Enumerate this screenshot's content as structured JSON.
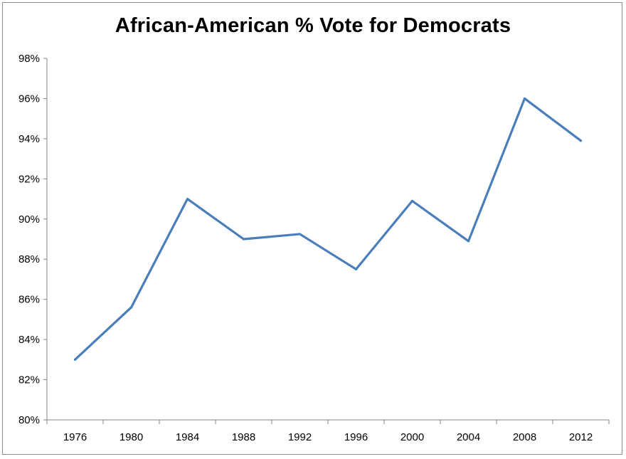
{
  "chart_data": {
    "type": "line",
    "title": "African-American % Vote for Democrats",
    "xlabel": "",
    "ylabel": "",
    "categories": [
      "1976",
      "1980",
      "1984",
      "1988",
      "1992",
      "1996",
      "2000",
      "2004",
      "2008",
      "2012"
    ],
    "series": [
      {
        "name": "African-American % Vote for Democrats",
        "values": [
          83.0,
          85.6,
          91.0,
          89.0,
          89.25,
          87.5,
          90.9,
          88.9,
          96.0,
          93.9
        ],
        "color": "#4a7ebb"
      }
    ],
    "ylim": [
      80,
      98
    ],
    "ytick_values": [
      80,
      82,
      84,
      86,
      88,
      90,
      92,
      94,
      96,
      98
    ],
    "ytick_labels": [
      "80%",
      "82%",
      "84%",
      "86%",
      "88%",
      "90%",
      "92%",
      "94%",
      "96%",
      "98%"
    ],
    "grid": false,
    "legend": "none"
  }
}
